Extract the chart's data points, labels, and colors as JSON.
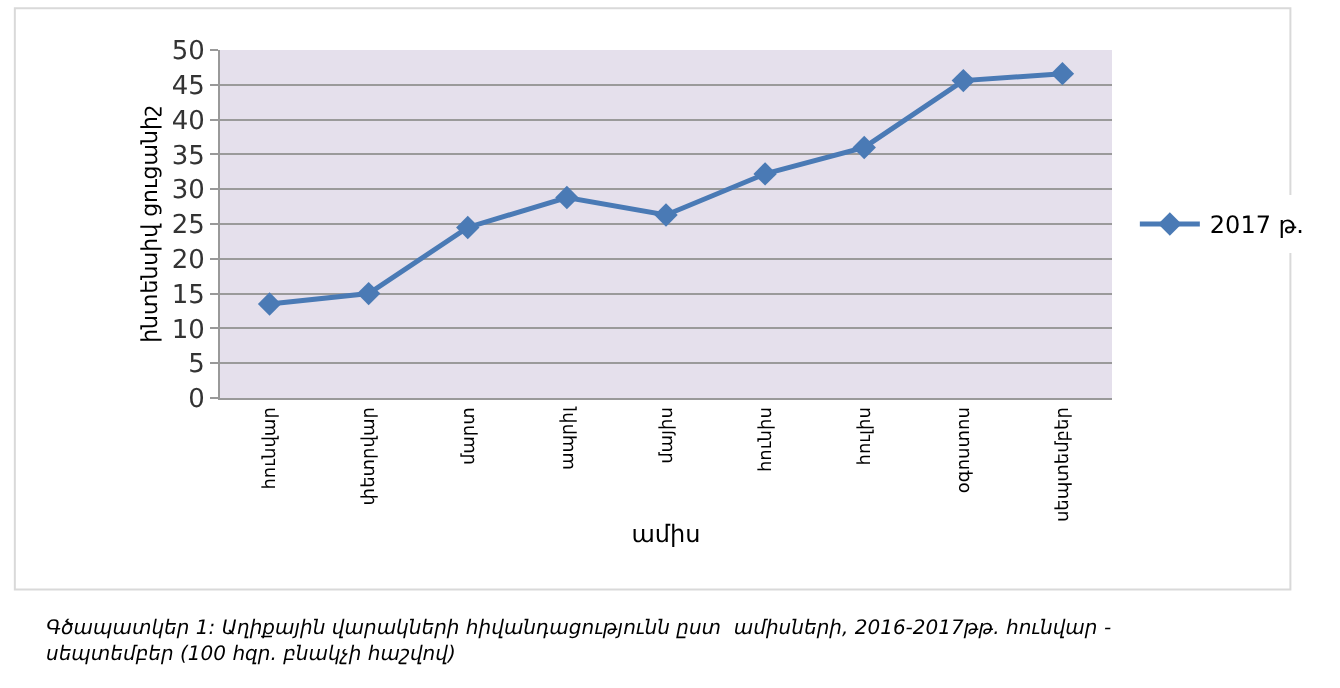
{
  "chart_data": {
    "type": "line",
    "xlabel": "ամիս",
    "ylabel": "ինտենսիվ ցուցանիշ",
    "categories": [
      "հունվար",
      "փետրվար",
      "մարտ",
      "ապրիլ",
      "մայիս",
      "հունիս",
      "հուլիս",
      "օգոստոս",
      "սեպտեմբեր"
    ],
    "series": [
      {
        "name": "2017 թ.",
        "color": "#4a7ab5",
        "marker": "diamond",
        "values": [
          13.5,
          15,
          24.5,
          28.8,
          26.3,
          32.2,
          36,
          45.6,
          46.6
        ]
      }
    ],
    "ylim": [
      0,
      50
    ],
    "yticks": [
      0,
      5,
      10,
      15,
      20,
      25,
      30,
      35,
      40,
      45,
      50
    ],
    "grid": "y",
    "legend": "right",
    "annotations": [
      "Գծապատկեր 1: Աղիքային վարակների հիվանդացությունն ըստ  ամիսների, 2016-2017թթ. հունվար - սեպտեմբեր (100 հզր. բնակչի հաշվով)"
    ]
  }
}
